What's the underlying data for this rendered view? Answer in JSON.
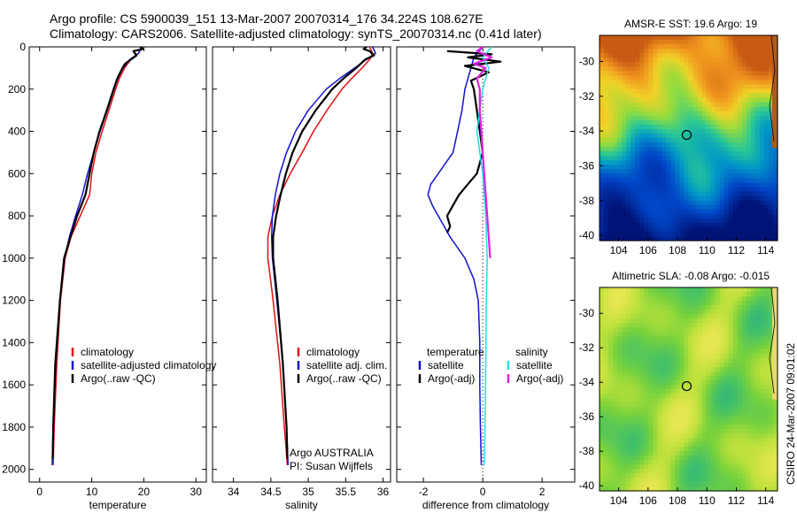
{
  "header": {
    "line1": "Argo profile: CS 5900039_151 13-Mar-2007 20070314_176 34.224S 108.627E",
    "line2": "Climatology: CARS2006. Satellite-adjusted climatology: synTS_20070314.nc (0.41d later)"
  },
  "colors": {
    "climatology": "#e01010",
    "satellite": "#1010d0",
    "argo": "#000000",
    "cyan": "#20e0e8",
    "magenta": "#e020e0"
  },
  "chart_data": [
    {
      "type": "line",
      "id": "temperature",
      "xlabel": "temperature",
      "ylabel": "",
      "xlim": [
        -2,
        32
      ],
      "ylim": [
        2060,
        0
      ],
      "xticks": [
        0,
        10,
        20,
        30
      ],
      "yticks": [
        0,
        200,
        400,
        600,
        800,
        1000,
        1200,
        1400,
        1600,
        1800,
        2000
      ],
      "legend": [
        "climatology",
        "satellite-adjusted climatology",
        "Argo(..raw -QC)"
      ],
      "series": [
        {
          "name": "climatology",
          "color": "#e01010",
          "depth": [
            0,
            30,
            60,
            100,
            150,
            200,
            300,
            400,
            500,
            600,
            700,
            800,
            900,
            1000,
            1200,
            1500,
            1800,
            1980
          ],
          "values": [
            19.6,
            19.0,
            17.5,
            16.3,
            15.3,
            14.6,
            13.3,
            12.0,
            10.8,
            10.0,
            9.6,
            7.8,
            6.0,
            4.9,
            4.0,
            3.3,
            2.8,
            2.6
          ]
        },
        {
          "name": "satellite",
          "color": "#1010d0",
          "depth": [
            0,
            30,
            60,
            100,
            150,
            200,
            300,
            400,
            500,
            600,
            700,
            800,
            900,
            1000,
            1200,
            1500,
            1800,
            1980
          ],
          "values": [
            19.6,
            19.0,
            17.3,
            16.0,
            15.0,
            14.3,
            13.0,
            11.6,
            10.4,
            9.2,
            8.2,
            6.9,
            5.7,
            4.8,
            3.9,
            3.1,
            2.6,
            2.4
          ]
        },
        {
          "name": "argo",
          "color": "#000000",
          "depth": [
            0,
            10,
            20,
            40,
            60,
            80,
            100,
            150,
            200,
            300,
            400,
            500,
            600,
            700,
            800,
            900,
            1000,
            1200,
            1500,
            1800,
            1950
          ],
          "values": [
            19.3,
            19.8,
            18.0,
            18.6,
            17.5,
            16.4,
            15.9,
            14.9,
            14.2,
            12.9,
            11.5,
            10.4,
            9.6,
            8.8,
            7.2,
            5.9,
            4.7,
            3.9,
            3.0,
            2.6,
            2.5
          ]
        }
      ]
    },
    {
      "type": "line",
      "id": "salinity",
      "xlabel": "salinity",
      "ylabel": "",
      "xlim": [
        33.72,
        36.1
      ],
      "ylim": [
        2060,
        0
      ],
      "xticks": [
        34,
        34.5,
        35,
        35.5,
        36
      ],
      "xticklabels": [
        "34",
        "34.5",
        "35",
        "35.5",
        "36"
      ],
      "legend": [
        "climatology",
        "satellite adj. clim.",
        "Argo(..raw -QC)"
      ],
      "series": [
        {
          "name": "climatology",
          "color": "#e01010",
          "depth": [
            0,
            30,
            60,
            100,
            150,
            200,
            300,
            400,
            500,
            600,
            700,
            800,
            900,
            1000,
            1200,
            1500,
            1800,
            1980
          ],
          "values": [
            35.82,
            35.86,
            35.82,
            35.72,
            35.58,
            35.45,
            35.25,
            35.07,
            34.92,
            34.76,
            34.62,
            34.52,
            34.46,
            34.46,
            34.53,
            34.62,
            34.68,
            34.72
          ]
        },
        {
          "name": "satellite",
          "color": "#1010d0",
          "depth": [
            0,
            30,
            60,
            100,
            150,
            200,
            300,
            400,
            500,
            600,
            700,
            800,
            900,
            1000,
            1200,
            1500,
            1800,
            1980
          ],
          "values": [
            35.86,
            35.9,
            35.78,
            35.62,
            35.42,
            35.24,
            35.0,
            34.83,
            34.71,
            34.62,
            34.56,
            34.52,
            34.51,
            34.52,
            34.58,
            34.66,
            34.71,
            34.73
          ]
        },
        {
          "name": "argo",
          "color": "#000000",
          "depth": [
            0,
            10,
            20,
            40,
            60,
            100,
            150,
            200,
            300,
            400,
            500,
            600,
            700,
            800,
            900,
            1000,
            1200,
            1500,
            1800,
            1950
          ],
          "values": [
            35.78,
            35.74,
            35.82,
            35.88,
            35.76,
            35.64,
            35.47,
            35.32,
            35.1,
            34.92,
            34.79,
            34.7,
            34.63,
            34.57,
            34.53,
            34.53,
            34.59,
            34.66,
            34.71,
            34.72
          ]
        }
      ],
      "annotations": [
        "Argo AUSTRALIA",
        "PI: Susan Wijffels"
      ]
    },
    {
      "type": "line",
      "id": "difference",
      "xlabel": "difference from climatology",
      "ylabel": "",
      "xlim": [
        -2.9,
        3.1
      ],
      "ylim": [
        2060,
        0
      ],
      "xticks": [
        -2,
        0,
        2
      ],
      "legend_titles": [
        "temperature",
        "salinity"
      ],
      "legend": [
        "satellite",
        "Argo(-adj)",
        "satellite",
        "Argo(-adj)"
      ],
      "series": [
        {
          "name": "temperature satellite",
          "color": "#1010d0",
          "depth": [
            0,
            50,
            100,
            150,
            200,
            300,
            400,
            500,
            600,
            650,
            700,
            750,
            800,
            850,
            900,
            1000,
            1100,
            1200,
            1400,
            1600,
            1800,
            1980
          ],
          "values": [
            0.0,
            -0.3,
            -0.4,
            -0.5,
            -0.6,
            -0.7,
            -0.85,
            -1.0,
            -1.5,
            -1.75,
            -1.85,
            -1.7,
            -1.5,
            -1.3,
            -1.1,
            -0.6,
            -0.3,
            -0.15,
            -0.1,
            -0.1,
            -0.08,
            -0.05
          ]
        },
        {
          "name": "temperature argo",
          "color": "#000000",
          "depth": [
            20,
            35,
            50,
            70,
            90,
            120,
            160,
            200,
            300,
            400,
            500,
            600,
            650,
            700,
            750,
            800,
            850,
            880
          ],
          "values": [
            -1.2,
            0.3,
            -0.5,
            0.6,
            -0.6,
            0.2,
            -0.4,
            -0.3,
            -0.2,
            -0.1,
            0.0,
            -0.2,
            -0.5,
            -0.8,
            -1.0,
            -1.2,
            -1.1,
            -1.2
          ]
        },
        {
          "name": "salinity satellite",
          "color": "#20e0e8",
          "depth": [
            0,
            50,
            100,
            200,
            300,
            400,
            500,
            600,
            800,
            1000,
            1200,
            1500,
            1800,
            1980
          ],
          "values": [
            0.3,
            0.0,
            0.2,
            0.0,
            -0.1,
            -0.2,
            -0.1,
            0.0,
            0.1,
            0.15,
            0.12,
            0.1,
            0.08,
            0.05
          ]
        },
        {
          "name": "salinity argo",
          "color": "#e020e0",
          "depth": [
            0,
            20,
            50,
            80,
            100,
            150,
            200,
            300,
            400,
            500,
            600,
            700,
            800,
            900,
            1000
          ],
          "values": [
            0.0,
            -0.2,
            0.3,
            -0.3,
            0.1,
            -0.2,
            -0.1,
            -0.1,
            -0.05,
            0.0,
            0.05,
            0.1,
            0.15,
            0.2,
            0.25
          ]
        }
      ]
    },
    {
      "type": "heatmap",
      "id": "sst",
      "title": "AMSR-E SST: 19.6 Argo: 19",
      "xlim": [
        102.7,
        114.8
      ],
      "ylim": [
        -40.3,
        -28.5
      ],
      "xticks": [
        104,
        106,
        108,
        110,
        112,
        114
      ],
      "yticks": [
        -30,
        -32,
        -34,
        -36,
        -38,
        -40
      ],
      "marker": [
        108.627,
        -34.224
      ]
    },
    {
      "type": "heatmap",
      "id": "sla",
      "title": "Altimetric SLA: -0.08 Argo: -0.015",
      "xlim": [
        102.7,
        114.8
      ],
      "ylim": [
        -40.3,
        -28.5
      ],
      "xticks": [
        104,
        106,
        108,
        110,
        112,
        114
      ],
      "yticks": [
        -30,
        -32,
        -34,
        -36,
        -38,
        -40
      ],
      "marker": [
        108.627,
        -34.224
      ]
    }
  ],
  "credit": "CSIRO 24-Mar-2007 09:01:02"
}
